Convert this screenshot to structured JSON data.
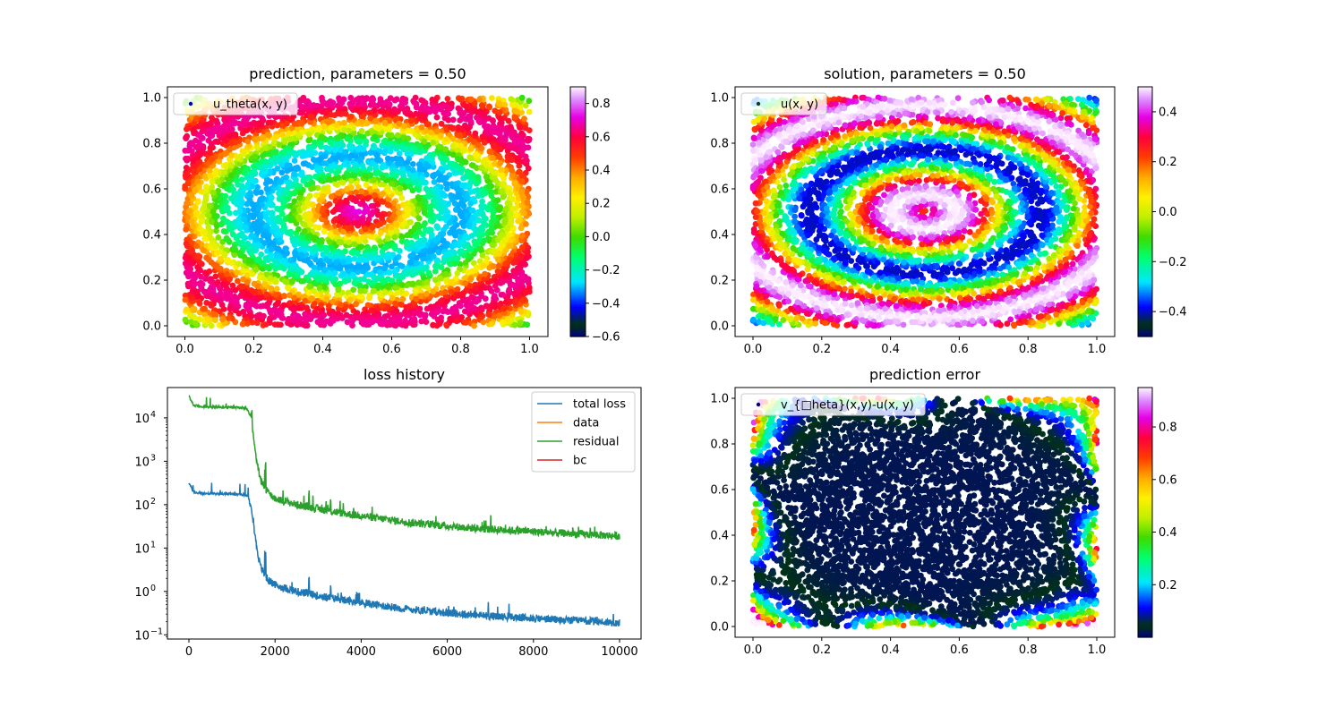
{
  "chart_data": [
    {
      "type": "scatter",
      "title": "prediction, parameters = 0.50",
      "field": "u_theta",
      "legend": {
        "label": "u_theta(x, y)",
        "location": "upper-left",
        "marker_color": "#0000cc"
      },
      "xlim": [
        0,
        1
      ],
      "ylim": [
        0,
        1
      ],
      "xticks": [
        "0.0",
        "0.2",
        "0.4",
        "0.6",
        "0.8",
        "1.0"
      ],
      "yticks": [
        "0.0",
        "0.2",
        "0.4",
        "0.6",
        "0.8",
        "1.0"
      ],
      "colormap": "gist_ncar",
      "colorbar": {
        "min": -0.6,
        "max": 0.9,
        "ticks": [
          "−0.6",
          "−0.4",
          "−0.2",
          "0.0",
          "0.2",
          "0.4",
          "0.6",
          "0.8"
        ]
      }
    },
    {
      "type": "scatter",
      "title": "solution, parameters = 0.50",
      "field": "u",
      "legend": {
        "label": "u(x, y)",
        "location": "upper-left",
        "marker_color": "#1a3a1a"
      },
      "xlim": [
        0,
        1
      ],
      "ylim": [
        0,
        1
      ],
      "xticks": [
        "0.0",
        "0.2",
        "0.4",
        "0.6",
        "0.8",
        "1.0"
      ],
      "yticks": [
        "0.0",
        "0.2",
        "0.4",
        "0.6",
        "0.8",
        "1.0"
      ],
      "colormap": "gist_ncar",
      "colorbar": {
        "min": -0.5,
        "max": 0.5,
        "ticks": [
          "−0.4",
          "−0.2",
          "0.0",
          "0.2",
          "0.4"
        ]
      }
    },
    {
      "type": "line",
      "title": "loss history",
      "yscale": "log",
      "xlim": [
        0,
        10000
      ],
      "ylim": [
        0.08,
        50000
      ],
      "xticks": [
        "0",
        "2000",
        "4000",
        "6000",
        "8000",
        "10000"
      ],
      "yticks": [
        "10",
        "10",
        "10",
        "10",
        "10",
        "10"
      ],
      "ytick_exponents": [
        "−1",
        "0",
        "1",
        "2",
        "3",
        "4"
      ],
      "legend_location": "upper-right",
      "series": [
        {
          "name": "total loss",
          "color": "#1f77b4",
          "x": [
            0,
            100,
            200,
            400,
            600,
            800,
            1000,
            1200,
            1350,
            1450,
            1550,
            1650,
            1750,
            1850,
            2000,
            2500,
            3000,
            3500,
            4000,
            5000,
            6000,
            7000,
            8000,
            9000,
            10000
          ],
          "y": [
            320,
            200,
            185,
            180,
            178,
            176,
            175,
            172,
            165,
            95,
            15,
            4,
            2.5,
            1.8,
            1.4,
            1.0,
            0.8,
            0.65,
            0.55,
            0.4,
            0.32,
            0.27,
            0.24,
            0.21,
            0.19
          ]
        },
        {
          "name": "data",
          "color": "#ff7f0e",
          "x": [],
          "y": []
        },
        {
          "name": "residual",
          "color": "#2ca02c",
          "x": [
            0,
            100,
            200,
            400,
            600,
            800,
            1000,
            1200,
            1350,
            1450,
            1550,
            1650,
            1750,
            1850,
            2000,
            2500,
            3000,
            3500,
            4000,
            5000,
            6000,
            7000,
            8000,
            9000,
            10000
          ],
          "y": [
            32000,
            20000,
            18500,
            18000,
            17800,
            17600,
            17500,
            17200,
            16500,
            9500,
            1500,
            400,
            250,
            180,
            140,
            100,
            80,
            65,
            55,
            40,
            32,
            27,
            24,
            21,
            19
          ]
        },
        {
          "name": "bc",
          "color": "#d62728",
          "x": [],
          "y": []
        }
      ]
    },
    {
      "type": "scatter",
      "title": "prediction error",
      "field": "abs_error",
      "legend": {
        "label": "v_{□heta}(x,y)-u(x, y)",
        "location": "upper-left",
        "marker_color": "#000080"
      },
      "xlim": [
        0,
        1
      ],
      "ylim": [
        0,
        1
      ],
      "xticks": [
        "0.0",
        "0.2",
        "0.4",
        "0.6",
        "0.8",
        "1.0"
      ],
      "yticks": [
        "0.0",
        "0.2",
        "0.4",
        "0.6",
        "0.8",
        "1.0"
      ],
      "colormap": "gist_ncar",
      "colorbar": {
        "min": 0.0,
        "max": 0.95,
        "ticks": [
          "0.2",
          "0.4",
          "0.6",
          "0.8"
        ]
      }
    }
  ]
}
